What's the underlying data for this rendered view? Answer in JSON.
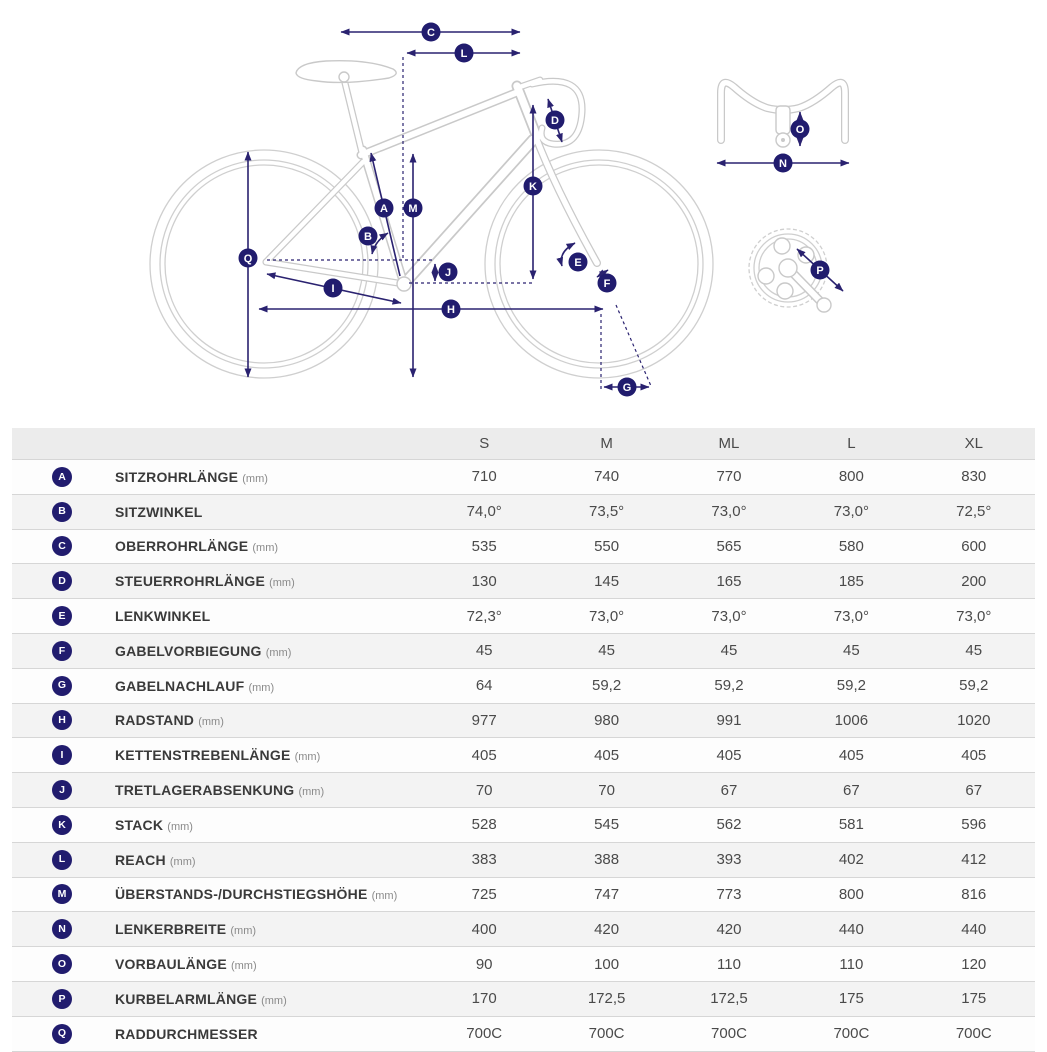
{
  "diagram": {
    "markers": {
      "A": "A",
      "B": "B",
      "C": "C",
      "D": "D",
      "E": "E",
      "F": "F",
      "G": "G",
      "H": "H",
      "I": "I",
      "J": "J",
      "K": "K",
      "L": "L",
      "M": "M",
      "N": "N",
      "O": "O",
      "P": "P",
      "Q": "Q"
    }
  },
  "table": {
    "size_headers": [
      "S",
      "M",
      "ML",
      "L",
      "XL"
    ],
    "rows": [
      {
        "key": "A",
        "label": "SITZROHRLÄNGE",
        "unit": "(mm)",
        "values": [
          "710",
          "740",
          "770",
          "800",
          "830"
        ]
      },
      {
        "key": "B",
        "label": "SITZWINKEL",
        "unit": "",
        "values": [
          "74,0°",
          "73,5°",
          "73,0°",
          "73,0°",
          "72,5°"
        ]
      },
      {
        "key": "C",
        "label": "OBERROHRLÄNGE",
        "unit": "(mm)",
        "values": [
          "535",
          "550",
          "565",
          "580",
          "600"
        ]
      },
      {
        "key": "D",
        "label": "STEUERROHRLÄNGE",
        "unit": "(mm)",
        "values": [
          "130",
          "145",
          "165",
          "185",
          "200"
        ]
      },
      {
        "key": "E",
        "label": "LENKWINKEL",
        "unit": "",
        "values": [
          "72,3°",
          "73,0°",
          "73,0°",
          "73,0°",
          "73,0°"
        ]
      },
      {
        "key": "F",
        "label": "GABELVORBIEGUNG",
        "unit": "(mm)",
        "values": [
          "45",
          "45",
          "45",
          "45",
          "45"
        ]
      },
      {
        "key": "G",
        "label": "GABELNACHLAUF",
        "unit": "(mm)",
        "values": [
          "64",
          "59,2",
          "59,2",
          "59,2",
          "59,2"
        ]
      },
      {
        "key": "H",
        "label": "RADSTAND",
        "unit": "(mm)",
        "values": [
          "977",
          "980",
          "991",
          "1006",
          "1020"
        ]
      },
      {
        "key": "I",
        "label": "KETTENSTREBENLÄNGE",
        "unit": "(mm)",
        "values": [
          "405",
          "405",
          "405",
          "405",
          "405"
        ]
      },
      {
        "key": "J",
        "label": "TRETLAGERABSENKUNG",
        "unit": "(mm)",
        "values": [
          "70",
          "70",
          "67",
          "67",
          "67"
        ]
      },
      {
        "key": "K",
        "label": "STACK",
        "unit": "(mm)",
        "values": [
          "528",
          "545",
          "562",
          "581",
          "596"
        ]
      },
      {
        "key": "L",
        "label": "REACH",
        "unit": "(mm)",
        "values": [
          "383",
          "388",
          "393",
          "402",
          "412"
        ]
      },
      {
        "key": "M",
        "label": "ÜBERSTANDS-/DURCHSTIEGSHÖHE",
        "unit": "(mm)",
        "values": [
          "725",
          "747",
          "773",
          "800",
          "816"
        ]
      },
      {
        "key": "N",
        "label": "LENKERBREITE",
        "unit": "(mm)",
        "values": [
          "400",
          "420",
          "420",
          "440",
          "440"
        ]
      },
      {
        "key": "O",
        "label": "VORBAULÄNGE",
        "unit": "(mm)",
        "values": [
          "90",
          "100",
          "110",
          "110",
          "120"
        ]
      },
      {
        "key": "P",
        "label": "KURBELARMLÄNGE",
        "unit": "(mm)",
        "values": [
          "170",
          "172,5",
          "172,5",
          "175",
          "175"
        ]
      },
      {
        "key": "Q",
        "label": "RADDURCHMESSER",
        "unit": "",
        "values": [
          "700C",
          "700C",
          "700C",
          "700C",
          "700C"
        ]
      }
    ]
  },
  "colors": {
    "badge_navy": "#211c6e",
    "dimension_navy": "#2a2270",
    "bike_outline_gray": "#c9c9c9"
  }
}
